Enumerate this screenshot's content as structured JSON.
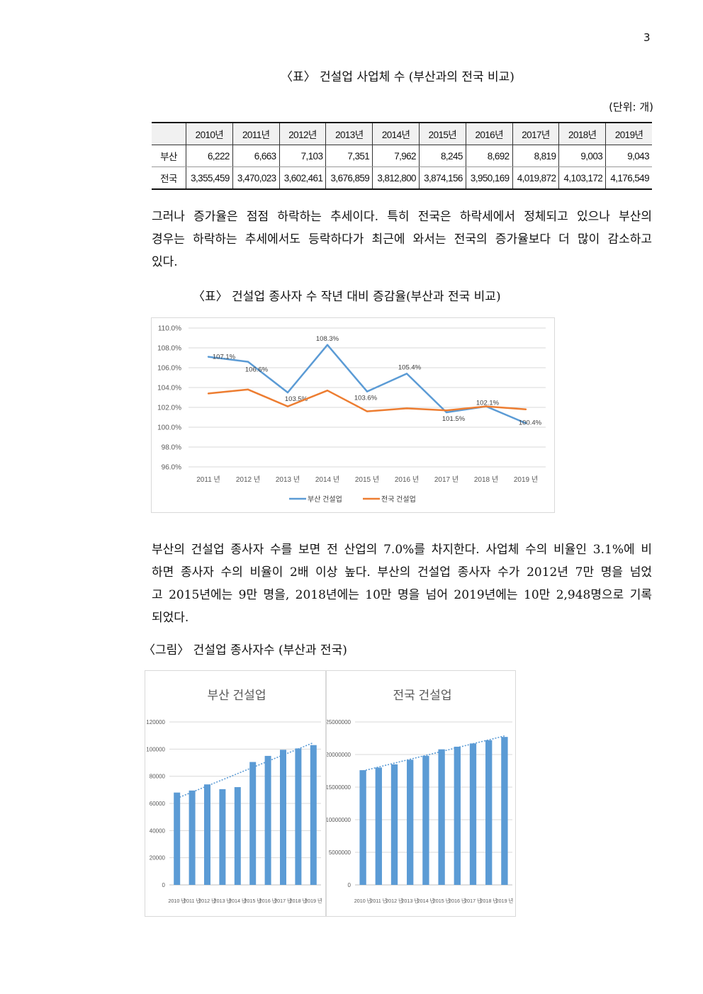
{
  "page_number": "3",
  "table_caption": "〈표〉 건설업 사업체 수 (부산과의 전국 비교)",
  "table_unit": "(단위: 개)",
  "table": {
    "header": [
      "",
      "2010년",
      "2011년",
      "2012년",
      "2013년",
      "2014년",
      "2015년",
      "2016년",
      "2017년",
      "2018년",
      "2019년"
    ],
    "rows": [
      [
        "부산",
        "6,222",
        "6,663",
        "7,103",
        "7,351",
        "7,962",
        "8,245",
        "8,692",
        "8,819",
        "9,003",
        "9,043"
      ],
      [
        "전국",
        "3,355,459",
        "3,470,023",
        "3,602,461",
        "3,676,859",
        "3,812,800",
        "3,874,156",
        "3,950,169",
        "4,019,872",
        "4,103,172",
        "4,176,549"
      ]
    ]
  },
  "paragraph1": [
    "그러나 증가율은 점점 하락하는 추세이다. 특히 전국은 하락세에서 정체되고 있으나 부산의",
    "경우는 하락하는 추세에서도 등락하다가 최근에 와서는 전국의 증가율보다 더 많이 감소하고",
    "있다."
  ],
  "chart1_caption": "〈표〉 건설업 종사자 수 작년 대비 증감율(부산과 전국 비교)",
  "paragraph2": [
    "부산의 건설업 종사자 수를 보면 전 산업의 7.0%를 차지한다. 사업체 수의 비율인 3.1%에 비",
    "하면 종사자 수의 비율이 2배 이상 높다. 부산의 건설업 종사자 수가 2012년 7만 명을 넘었",
    "고 2015년에는 9만 명을, 2018년에는 10만 명을 넘어 2019년에는 10만 2,948명으로 기록",
    "되었다."
  ],
  "figure_caption": "〈그림〉 건설업 종사자수 (부산과 전국)",
  "chart_data": [
    {
      "type": "line",
      "x": [
        "2011 년",
        "2012 년",
        "2013 년",
        "2014 년",
        "2015 년",
        "2016 년",
        "2017 년",
        "2018 년",
        "2019 년"
      ],
      "yticks": [
        "110.0%",
        "108.0%",
        "106.0%",
        "104.0%",
        "102.0%",
        "100.0%",
        "98.0%",
        "96.0%"
      ],
      "ylim": [
        96,
        110
      ],
      "grid": true,
      "legend": "bottom",
      "series": [
        {
          "name": "부산 건설업",
          "color": "#5b9bd5",
          "values": [
            107.1,
            106.6,
            103.5,
            108.3,
            103.6,
            105.4,
            101.5,
            102.1,
            100.4
          ],
          "labels": [
            "107.1%",
            "106.6%",
            "103.5%",
            "108.3%",
            "103.6%",
            "105.4%",
            "101.5%",
            "102.1%",
            "100.4%"
          ]
        },
        {
          "name": "전국 건설업",
          "color": "#ed7d31",
          "values": [
            103.4,
            103.8,
            102.1,
            103.7,
            101.6,
            101.9,
            101.7,
            102.1,
            101.8
          ]
        }
      ]
    },
    {
      "type": "bar",
      "title": "부산 건설업",
      "categories": [
        "2010 년",
        "2011 년",
        "2012 년",
        "2013 년",
        "2014 년",
        "2015 년",
        "2016 년",
        "2017 년",
        "2018 년",
        "2019 년"
      ],
      "values": [
        68000,
        69500,
        74000,
        70500,
        72000,
        90500,
        95000,
        99500,
        100500,
        102948
      ],
      "yticks": [
        "0",
        "20000",
        "40000",
        "60000",
        "80000",
        "100000",
        "120000"
      ],
      "ylim": [
        0,
        120000
      ],
      "trendline": true,
      "color": "#5b9bd5"
    },
    {
      "type": "bar",
      "title": "전국 건설업",
      "categories": [
        "2010 년",
        "2011 년",
        "2012 년",
        "2013 년",
        "2014 년",
        "2015 년",
        "2016 년",
        "2017 년",
        "2018 년",
        "2019 년"
      ],
      "values": [
        17600000,
        18000000,
        18500000,
        19200000,
        19800000,
        20800000,
        21200000,
        21700000,
        22200000,
        22700000
      ],
      "yticks": [
        "0",
        "5000000",
        "10000000",
        "15000000",
        "20000000",
        "25000000"
      ],
      "ylim": [
        0,
        25000000
      ],
      "trendline": true,
      "color": "#5b9bd5"
    }
  ]
}
